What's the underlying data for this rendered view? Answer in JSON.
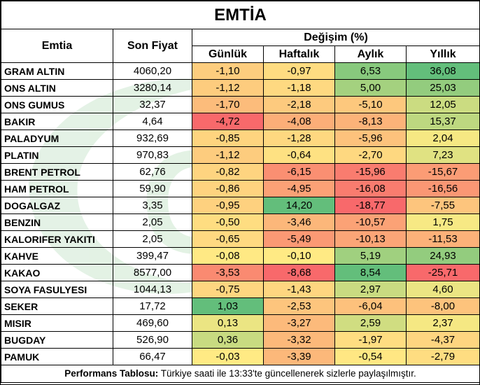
{
  "title": "EMTİA",
  "headers": {
    "commodity": "Emtia",
    "last_price": "Son Fiyat",
    "change_group": "Değişim (%)",
    "daily": "Günlük",
    "weekly": "Haftalık",
    "monthly": "Aylık",
    "yearly": "Yıllık"
  },
  "chart_data": {
    "type": "table",
    "title": "EMTİA",
    "columns": [
      "Emtia",
      "Son Fiyat",
      "Günlük",
      "Haftalık",
      "Aylık",
      "Yıllık"
    ],
    "rows": [
      {
        "name": "GRAM ALTIN",
        "price": "4060,20",
        "daily": "-1,10",
        "weekly": "-0,97",
        "monthly": "6,53",
        "yearly": "36,08"
      },
      {
        "name": "ONS ALTIN",
        "price": "3280,14",
        "daily": "-1,12",
        "weekly": "-1,18",
        "monthly": "5,00",
        "yearly": "25,03"
      },
      {
        "name": "ONS GUMUS",
        "price": "32,37",
        "daily": "-1,70",
        "weekly": "-2,18",
        "monthly": "-5,10",
        "yearly": "12,05"
      },
      {
        "name": "BAKIR",
        "price": "4,64",
        "daily": "-4,72",
        "weekly": "-4,08",
        "monthly": "-8,13",
        "yearly": "15,37"
      },
      {
        "name": "PALADYUM",
        "price": "932,69",
        "daily": "-0,85",
        "weekly": "-1,28",
        "monthly": "-5,96",
        "yearly": "2,04"
      },
      {
        "name": "PLATIN",
        "price": "970,83",
        "daily": "-1,12",
        "weekly": "-0,64",
        "monthly": "-2,70",
        "yearly": "7,23"
      },
      {
        "name": "BRENT PETROL",
        "price": "62,76",
        "daily": "-0,82",
        "weekly": "-6,15",
        "monthly": "-15,96",
        "yearly": "-15,67"
      },
      {
        "name": "HAM PETROL",
        "price": "59,90",
        "daily": "-0,86",
        "weekly": "-4,95",
        "monthly": "-16,08",
        "yearly": "-16,56"
      },
      {
        "name": "DOGALGAZ",
        "price": "3,35",
        "daily": "-0,95",
        "weekly": "14,20",
        "monthly": "-18,77",
        "yearly": "-7,55"
      },
      {
        "name": "BENZIN",
        "price": "2,05",
        "daily": "-0,50",
        "weekly": "-3,46",
        "monthly": "-10,57",
        "yearly": "1,75"
      },
      {
        "name": "KALORIFER YAKITI",
        "price": "2,05",
        "daily": "-0,65",
        "weekly": "-5,49",
        "monthly": "-10,13",
        "yearly": "-11,53"
      },
      {
        "name": "KAHVE",
        "price": "399,47",
        "daily": "-0,08",
        "weekly": "-0,10",
        "monthly": "5,19",
        "yearly": "24,93"
      },
      {
        "name": "KAKAO",
        "price": "8577,00",
        "daily": "-3,53",
        "weekly": "-8,68",
        "monthly": "8,54",
        "yearly": "-25,71"
      },
      {
        "name": "SOYA FASULYESI",
        "price": "1044,13",
        "daily": "-0,75",
        "weekly": "-1,43",
        "monthly": "2,97",
        "yearly": "4,60"
      },
      {
        "name": "SEKER",
        "price": "17,72",
        "daily": "1,03",
        "weekly": "-2,53",
        "monthly": "-6,04",
        "yearly": "-8,00"
      },
      {
        "name": "MISIR",
        "price": "469,60",
        "daily": "0,13",
        "weekly": "-3,27",
        "monthly": "2,59",
        "yearly": "2,37"
      },
      {
        "name": "BUGDAY",
        "price": "526,90",
        "daily": "0,36",
        "weekly": "-3,32",
        "monthly": "-1,97",
        "yearly": "-4,37"
      },
      {
        "name": "PAMUK",
        "price": "66,47",
        "daily": "-0,03",
        "weekly": "-3,39",
        "monthly": "-0,54",
        "yearly": "-2,79"
      }
    ],
    "color_scale": {
      "low": "#f8696b",
      "mid": "#ffeb84",
      "high": "#63be7b"
    }
  },
  "footer": {
    "label": "Performans Tablosu:",
    "text": " Türkiye saati ile 13:33'te güncellenerek sizlerle paylaşılmıştır."
  },
  "watermark": {
    "text": "GCM",
    "color": "#2e9e3a"
  }
}
